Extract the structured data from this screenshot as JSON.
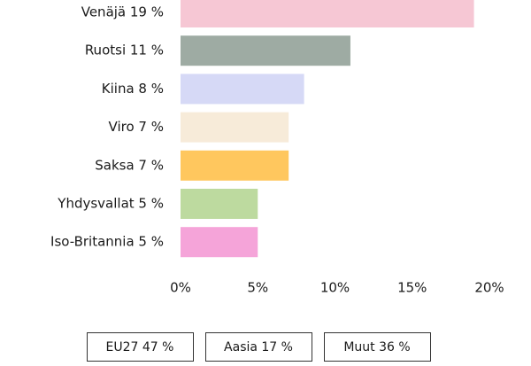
{
  "chart_data": {
    "type": "bar",
    "orientation": "horizontal",
    "categories": [
      "Venäjä 19 %",
      "Ruotsi 11 %",
      "Kiina 8 %",
      "Viro 7 %",
      "Saksa 7 %",
      "Yhdysvallat 5 %",
      "Iso-Britannia 5 %"
    ],
    "values": [
      19,
      11,
      8,
      7,
      7,
      5,
      5
    ],
    "colors": [
      "#f6c7d4",
      "#9eaba3",
      "#d6d9f6",
      "#f7ebd9",
      "#ffc75e",
      "#bdda9f",
      "#f5a4d9"
    ],
    "xlim": [
      0,
      20
    ],
    "xticks": [
      {
        "value": 0,
        "label": "0%"
      },
      {
        "value": 5,
        "label": "5%"
      },
      {
        "value": 10,
        "label": "10%"
      },
      {
        "value": 15,
        "label": "15%"
      },
      {
        "value": 20,
        "label": "20%"
      }
    ],
    "grid": false,
    "summary": [
      "EU27 47 %",
      "Aasia 17 %",
      "Muut 36 %"
    ]
  }
}
